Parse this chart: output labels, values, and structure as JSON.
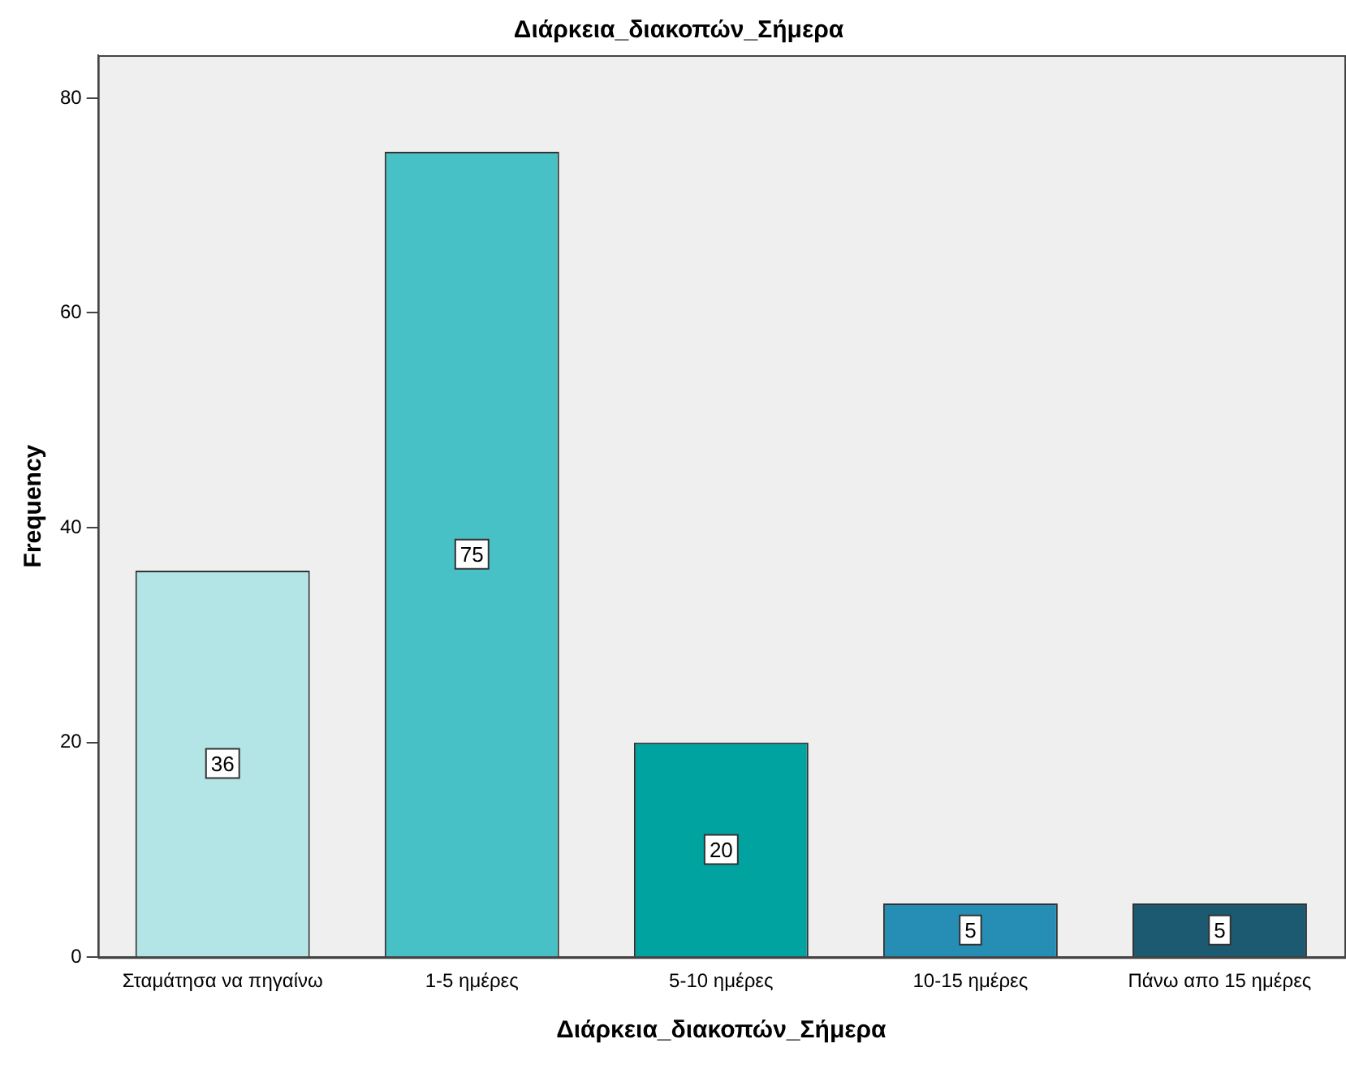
{
  "chart_data": {
    "type": "bar",
    "title": "Διάρκεια_διακοπών_Σήμερα",
    "xlabel": "Διάρκεια_διακοπών_Σήμερα",
    "ylabel": "Frequency",
    "categories": [
      "Σταμάτησα να πηγαίνω",
      "1-5 ημέρες",
      "5-10 ημέρες",
      "10-15 ημέρες",
      "Πάνω απο 15 ημέρες"
    ],
    "values": [
      36,
      75,
      20,
      5,
      5
    ],
    "colors": [
      "#b3e4e6",
      "#48c1c6",
      "#00a3a0",
      "#268eb5",
      "#1c5a72"
    ],
    "ylim": [
      0,
      84
    ],
    "yticks": [
      0,
      20,
      40,
      60,
      80
    ],
    "grid": false,
    "legend": false,
    "data_labels": true
  }
}
